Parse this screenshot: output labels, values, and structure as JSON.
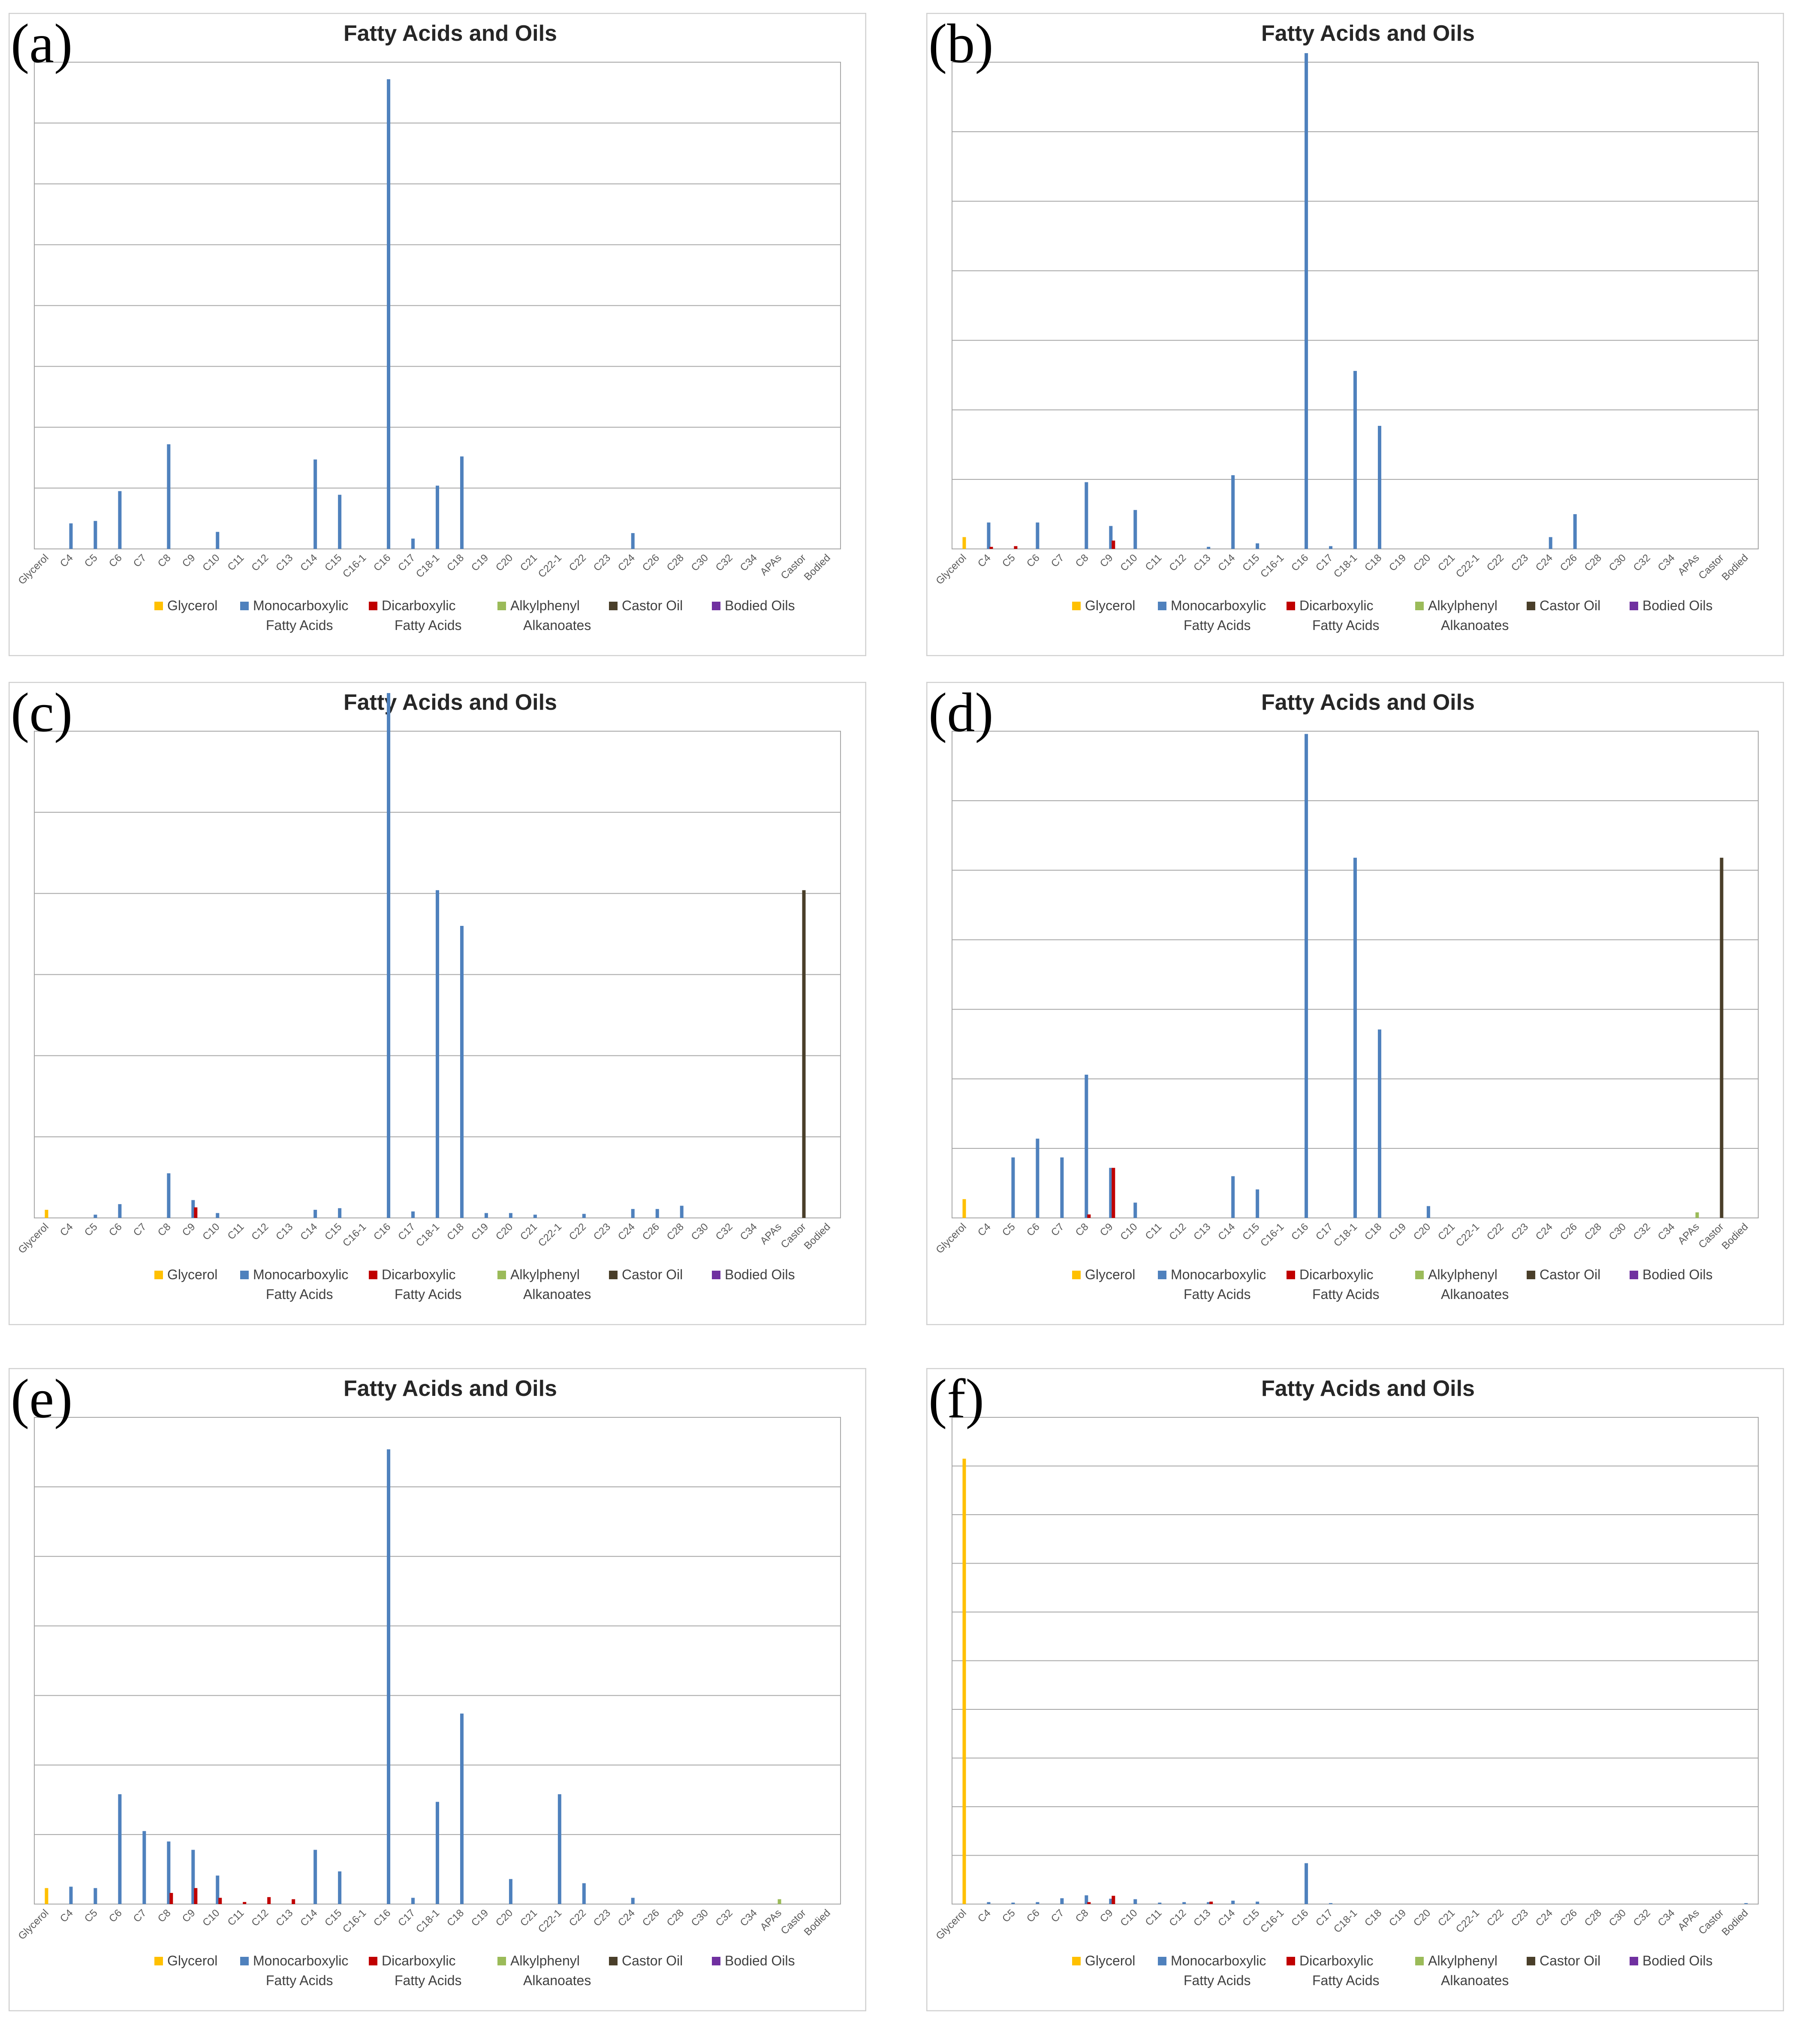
{
  "categories_default": [
    "Glycerol",
    "C4",
    "C5",
    "C6",
    "C7",
    "C8",
    "C9",
    "C10",
    "C11",
    "C12",
    "C13",
    "C14",
    "C15",
    "C16-1",
    "C16",
    "C17",
    "C18-1",
    "C18",
    "C19",
    "C20",
    "C21",
    "C22-1",
    "C22",
    "C23",
    "C24",
    "C26",
    "C28",
    "C30",
    "C32",
    "C34",
    "APAs",
    "Castor",
    "Bodied"
  ],
  "categories_b": [
    "Glycerol",
    "C4",
    "C5",
    "C6",
    "C7",
    "C8",
    "C9",
    "C10",
    "C11",
    "C12",
    "C13",
    "C14",
    "C15",
    "C16-1",
    "C16",
    "C17",
    "C18-1",
    "C18",
    "C19",
    "C20",
    "C21",
    "C22-1",
    "C22",
    "C23",
    "C24",
    "C26",
    "C28",
    "C30",
    "C32",
    "C34",
    "APAs",
    "Castor",
    "Bodied"
  ],
  "colors": {
    "Glycerol": "#FFC000",
    "Monocarboxylic Fatty Acids": "#4F81BD",
    "Dicarboxylic Fatty Acids": "#C00000",
    "Alkylphenyl Alkanoates": "#9BBB59",
    "Castor Oil": "#4A3F2A",
    "Bodied Oils": "#7030A0"
  },
  "legend": [
    {
      "key": "Glycerol",
      "line1": "Glycerol",
      "line2": ""
    },
    {
      "key": "Monocarboxylic Fatty Acids",
      "line1": "Monocarboxylic",
      "line2": "Fatty Acids"
    },
    {
      "key": "Dicarboxylic Fatty Acids",
      "line1": "Dicarboxylic",
      "line2": "Fatty Acids"
    },
    {
      "key": "Alkylphenyl Alkanoates",
      "line1": "Alkylphenyl",
      "line2": "Alkanoates"
    },
    {
      "key": "Castor Oil",
      "line1": "Castor Oil",
      "line2": ""
    },
    {
      "key": "Bodied Oils",
      "line1": "Bodied Oils",
      "line2": ""
    }
  ],
  "chart_data": [
    {
      "type": "bar",
      "label": "(a)",
      "title": "Fatty Acids and Oils",
      "gridlines": 8,
      "ylim": [
        0,
        8
      ],
      "values": {
        "Monocarboxylic Fatty Acids": {
          "C4": 0.42,
          "C5": 0.46,
          "C6": 0.95,
          "C8": 1.72,
          "C10": 0.28,
          "C14": 1.47,
          "C15": 0.89,
          "C16": 7.72,
          "C17": 0.17,
          "C18-1": 1.04,
          "C18": 1.52,
          "C24": 0.26
        }
      }
    },
    {
      "type": "bar",
      "label": "(b)",
      "title": "Fatty Acids and Oils",
      "gridlines": 7,
      "ylim": [
        0,
        7
      ],
      "values": {
        "Glycerol": {
          "Glycerol": 0.17
        },
        "Monocarboxylic Fatty Acids": {
          "C4": 0.38,
          "C6": 0.38,
          "C8": 0.96,
          "C9": 0.33,
          "C10": 0.56,
          "C13": 0.03,
          "C14": 1.06,
          "C15": 0.08,
          "C16": 7.13,
          "C17": 0.04,
          "C18-1": 2.56,
          "C18": 1.77,
          "C24": 0.17,
          "C26": 0.5
        },
        "Dicarboxylic Fatty Acids": {
          "C4": 0.03,
          "C5": 0.04,
          "C9": 0.12
        }
      }
    },
    {
      "type": "bar",
      "label": "(c)",
      "title": "Fatty Acids and Oils",
      "gridlines": 6,
      "ylim": [
        0,
        6
      ],
      "values": {
        "Glycerol": {
          "Glycerol": 0.1
        },
        "Monocarboxylic Fatty Acids": {
          "C5": 0.04,
          "C6": 0.17,
          "C8": 0.55,
          "C9": 0.22,
          "C10": 0.06,
          "C14": 0.1,
          "C15": 0.12,
          "C16": 6.47,
          "C17": 0.08,
          "C18-1": 4.04,
          "C18": 3.6,
          "C19": 0.06,
          "C20": 0.06,
          "C21": 0.04,
          "C22": 0.05,
          "C24": 0.11,
          "C26": 0.11,
          "C28": 0.15
        },
        "Dicarboxylic Fatty Acids": {
          "C9": 0.13
        },
        "Castor Oil": {
          "Castor": 4.04
        }
      }
    },
    {
      "type": "bar",
      "label": "(d)",
      "title": "Fatty Acids and Oils",
      "gridlines": 7,
      "ylim": [
        0,
        7
      ],
      "values": {
        "Glycerol": {
          "Glycerol": 0.27
        },
        "Monocarboxylic Fatty Acids": {
          "C5": 0.87,
          "C6": 1.14,
          "C7": 0.87,
          "C8": 2.06,
          "C9": 0.72,
          "C10": 0.22,
          "C14": 0.6,
          "C15": 0.41,
          "C16": 6.96,
          "C18-1": 5.18,
          "C18": 2.71,
          "C20": 0.17
        },
        "Dicarboxylic Fatty Acids": {
          "C8": 0.05,
          "C9": 0.72
        },
        "Alkylphenyl Alkanoates": {
          "APAs": 0.08
        },
        "Castor Oil": {
          "Castor": 5.18
        }
      }
    },
    {
      "type": "bar",
      "label": "(e)",
      "title": "Fatty Acids and Oils",
      "gridlines": 7,
      "ylim": [
        0,
        7
      ],
      "values": {
        "Glycerol": {
          "Glycerol": 0.23
        },
        "Monocarboxylic Fatty Acids": {
          "C4": 0.25,
          "C5": 0.23,
          "C6": 1.58,
          "C7": 1.05,
          "C8": 0.9,
          "C9": 0.78,
          "C10": 0.41,
          "C14": 0.78,
          "C15": 0.47,
          "C16": 6.54,
          "C17": 0.09,
          "C18-1": 1.47,
          "C18": 2.74,
          "C20": 0.36,
          "C22-1": 1.58,
          "C22": 0.3,
          "C24": 0.09
        },
        "Dicarboxylic Fatty Acids": {
          "C8": 0.16,
          "C9": 0.23,
          "C10": 0.09,
          "C11": 0.03,
          "C12": 0.1,
          "C13": 0.07
        },
        "Alkylphenyl Alkanoates": {
          "APAs": 0.07
        }
      }
    },
    {
      "type": "bar",
      "label": "(f)",
      "title": "Fatty Acids and Oils",
      "gridlines": 10,
      "ylim": [
        0,
        10
      ],
      "values": {
        "Glycerol": {
          "Glycerol": 9.15
        },
        "Monocarboxylic Fatty Acids": {
          "C4": 0.04,
          "C5": 0.03,
          "C6": 0.04,
          "C7": 0.12,
          "C8": 0.18,
          "C9": 0.11,
          "C10": 0.1,
          "C11": 0.03,
          "C12": 0.04,
          "C13": 0.04,
          "C14": 0.07,
          "C15": 0.05,
          "C16": 0.84,
          "C17": 0.02,
          "Bodied": 0.02
        },
        "Dicarboxylic Fatty Acids": {
          "C8": 0.04,
          "C9": 0.17,
          "C13": 0.05
        }
      }
    }
  ]
}
